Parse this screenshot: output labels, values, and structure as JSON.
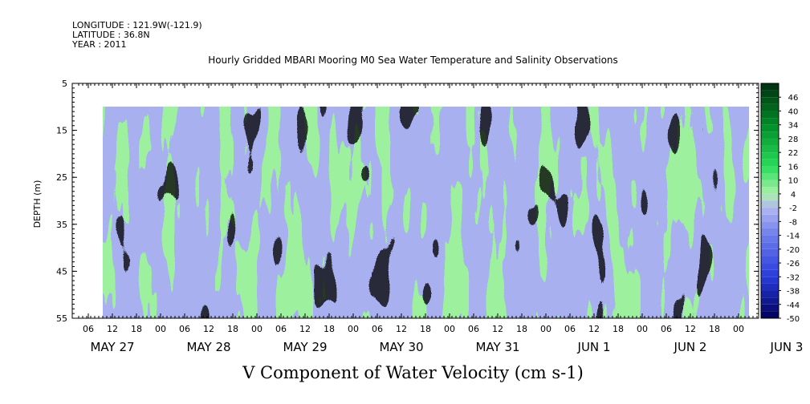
{
  "header": {
    "longitude": "LONGITUDE : 121.9W(-121.9)",
    "latitude": "LATITUDE : 36.8N",
    "year": "YEAR : 2011"
  },
  "title": "Hourly Gridded MBARI Mooring M0 Sea Water Temperature and Salinity Observations",
  "bottom_title": "V Component of Water Velocity (cm s-1)",
  "chart_data": {
    "type": "heatmap",
    "title": "Hourly Gridded MBARI Mooring M0 Sea Water Temperature and Salinity Observations",
    "xlabel": "",
    "ylabel": "DEPTH (m)",
    "colorbar_label": "V Component of Water Velocity (cm s-1)",
    "y_ticks": [
      5,
      15,
      25,
      35,
      45,
      55
    ],
    "ylim": [
      5,
      55
    ],
    "y_reversed": true,
    "data_depth_range": [
      10,
      55
    ],
    "x_range_hours": [
      0,
      192
    ],
    "x_hour_ticks": [
      "06",
      "12",
      "18",
      "00",
      "06",
      "12",
      "18",
      "00",
      "06",
      "12",
      "18",
      "00",
      "06",
      "12",
      "18",
      "00",
      "06",
      "12",
      "18",
      "00",
      "06",
      "12",
      "18",
      "00",
      "06",
      "12",
      "18",
      "00",
      "06",
      "12",
      "18",
      "00"
    ],
    "x_day_labels": [
      "MAY 27",
      "MAY 28",
      "MAY 29",
      "MAY 30",
      "MAY 31",
      "JUN  1",
      "JUN  2",
      "JUN  3"
    ],
    "colorbar_ticks": [
      46,
      40,
      34,
      28,
      22,
      16,
      10,
      4,
      -2,
      -8,
      -14,
      -20,
      -26,
      -32,
      -38,
      -44,
      -50
    ],
    "colorbar_range": [
      -50,
      52
    ],
    "colors": {
      "strong_positive": "#003a10",
      "positive": "#00d840",
      "weak_positive": "#a8f0a8",
      "weak_negative": "#a8b0f0",
      "negative": "#5a6ae8",
      "strong_negative": "#00005a"
    },
    "dominant_pattern_by_day": [
      {
        "day": "MAY 27",
        "pattern": "green near surface and bottom, blue mid-column"
      },
      {
        "day": "MAY 28",
        "pattern": "mixed green and blue bands"
      },
      {
        "day": "MAY 29",
        "pattern": "blue early, green later"
      },
      {
        "day": "MAY 30",
        "pattern": "mostly blue"
      },
      {
        "day": "MAY 31",
        "pattern": "green upper, blue lower"
      },
      {
        "day": "JUN  1",
        "pattern": "green surface patches, blue mid-depth"
      },
      {
        "day": "JUN  2",
        "pattern": "alternating green and blue"
      }
    ]
  }
}
